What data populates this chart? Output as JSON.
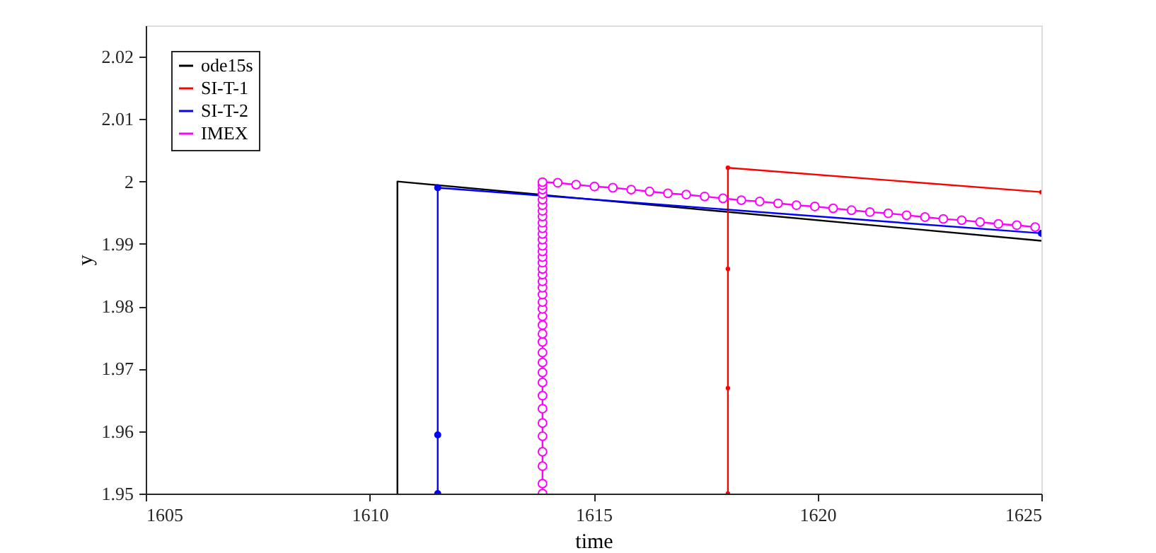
{
  "chart_data": {
    "type": "line",
    "xlabel": "time",
    "ylabel": "y",
    "xlim": [
      1605,
      1625
    ],
    "xticks": [
      1605,
      1610,
      1615,
      1620,
      1625
    ],
    "ylim": [
      1.95,
      2.025
    ],
    "yticks": [
      1.95,
      1.96,
      1.97,
      1.98,
      1.99,
      {
        "value": 2,
        "label": "2"
      },
      2.01,
      2.02
    ],
    "grid": false,
    "legend": "top left",
    "line_style": "solid",
    "series": [
      {
        "name": "ode15s",
        "color": "#000000",
        "marker": "none",
        "x": [
          1610.62,
          1610.62,
          1625
        ],
        "values": [
          1.95,
          2.0,
          1.9905
        ]
      },
      {
        "name": "SI-T-1",
        "color": "#ff0000",
        "marker": "circle",
        "x": [
          1618,
          1618,
          1618,
          1618,
          1625
        ],
        "values": [
          1.95,
          1.9669,
          1.986,
          2.0022,
          1.9983
        ]
      },
      {
        "name": "SI-T-2",
        "color": "#0000ff",
        "marker": "circle",
        "x": [
          1611.52,
          1611.52,
          1611.52,
          1625
        ],
        "values": [
          1.95,
          1.9594,
          1.999,
          1.9917
        ]
      },
      {
        "name": "IMEX",
        "color": "#ff00ff",
        "marker": "circle",
        "x": [
          1613.86,
          1613.86,
          1613.86,
          1613.86,
          1613.86,
          1613.86,
          1613.86,
          1613.86,
          1613.86,
          1613.86,
          1613.86,
          1613.86,
          1613.86,
          1613.86,
          1613.86,
          1613.86,
          1613.86,
          1613.86,
          1613.86,
          1613.86,
          1613.86,
          1613.86,
          1613.86,
          1613.86,
          1613.86,
          1613.86,
          1613.86,
          1613.86,
          1613.86,
          1613.86,
          1613.86,
          1613.86,
          1613.86,
          1613.86,
          1613.86,
          1613.86,
          1613.86,
          1613.86,
          1613.86,
          1614.2,
          1614.61,
          1615.02,
          1615.43,
          1615.84,
          1616.25,
          1616.66,
          1617.07,
          1617.48,
          1617.89,
          1618.3,
          1618.71,
          1619.12,
          1619.53,
          1619.94,
          1620.35,
          1620.76,
          1621.17,
          1621.58,
          1621.99,
          1622.4,
          1622.81,
          1623.22,
          1623.63,
          1624.04,
          1624.45,
          1624.86
        ],
        "values": [
          1.95,
          1.9516,
          1.9544,
          1.9567,
          1.9592,
          1.9613,
          1.9636,
          1.9657,
          1.9678,
          1.9694,
          1.971,
          1.9726,
          1.9743,
          1.9756,
          1.977,
          1.9784,
          1.9796,
          1.9807,
          1.9819,
          1.983,
          1.984,
          1.9851,
          1.986,
          1.987,
          1.9879,
          1.9888,
          1.9897,
          1.9907,
          1.9916,
          1.9925,
          1.9934,
          1.9944,
          1.9953,
          1.9962,
          1.9971,
          1.998,
          1.9987,
          1.9994,
          1.9999,
          1.9998,
          1.9995,
          1.9992,
          1.999,
          1.9987,
          1.9984,
          1.9981,
          1.9979,
          1.9976,
          1.9973,
          1.997,
          1.9968,
          1.9965,
          1.9962,
          1.996,
          1.9957,
          1.9954,
          1.9951,
          1.9949,
          1.9946,
          1.9943,
          1.994,
          1.9938,
          1.9935,
          1.9932,
          1.993,
          1.9927
        ]
      }
    ]
  }
}
